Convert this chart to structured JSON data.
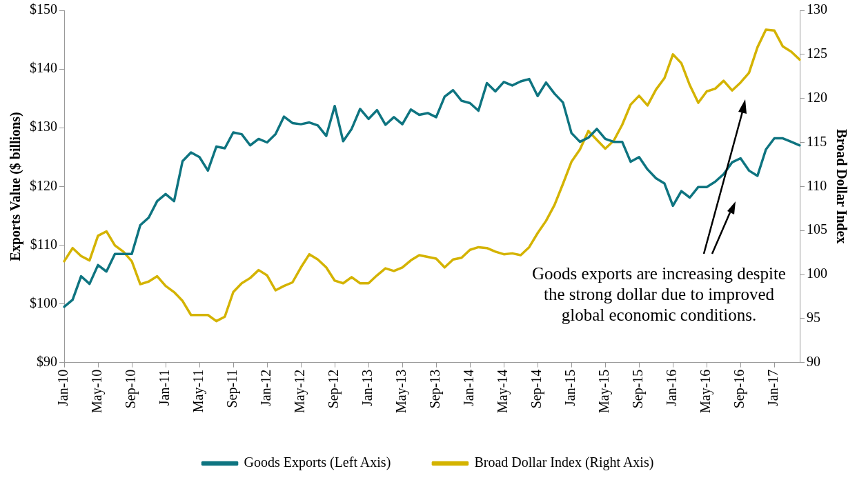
{
  "chart_data": {
    "type": "line",
    "categories": [
      "Jan-10",
      null,
      null,
      null,
      "May-10",
      null,
      null,
      null,
      "Sep-10",
      null,
      null,
      null,
      "Jan-11",
      null,
      null,
      null,
      "May-11",
      null,
      null,
      null,
      "Sep-11",
      null,
      null,
      null,
      "Jan-12",
      null,
      null,
      null,
      "May-12",
      null,
      null,
      null,
      "Sep-12",
      null,
      null,
      null,
      "Jan-13",
      null,
      null,
      null,
      "May-13",
      null,
      null,
      null,
      "Sep-13",
      null,
      null,
      null,
      "Jan-14",
      null,
      null,
      null,
      "May-14",
      null,
      null,
      null,
      "Sep-14",
      null,
      null,
      null,
      "Jan-15",
      null,
      null,
      null,
      "May-15",
      null,
      null,
      null,
      "Sep-15",
      null,
      null,
      null,
      "Jan-16",
      null,
      null,
      null,
      "May-16",
      null,
      null,
      null,
      "Sep-16",
      null,
      null,
      null,
      "Jan-17",
      null,
      null,
      null
    ],
    "series": [
      {
        "name": "Goods Exports (Left Axis)",
        "color": "#0e7480",
        "values": [
          99.5,
          100.7,
          104.7,
          103.4,
          106.6,
          105.5,
          108.5,
          108.5,
          108.5,
          113.4,
          114.7,
          117.5,
          118.7,
          117.5,
          124.3,
          125.8,
          125.0,
          122.7,
          126.8,
          126.5,
          129.2,
          128.9,
          127.0,
          128.1,
          127.5,
          128.9,
          131.9,
          130.8,
          130.6,
          130.9,
          130.4,
          128.6,
          133.7,
          127.7,
          129.8,
          133.2,
          131.5,
          133.0,
          130.5,
          131.8,
          130.6,
          133.1,
          132.2,
          132.5,
          131.8,
          135.3,
          136.4,
          134.6,
          134.2,
          132.9,
          137.6,
          136.2,
          137.8,
          137.2,
          137.9,
          138.3,
          135.4,
          137.7,
          135.8,
          134.3,
          129.1,
          127.6,
          128.3,
          129.8,
          128.1,
          127.6,
          127.6,
          124.2,
          125.0,
          122.9,
          121.4,
          120.5,
          116.7,
          119.2,
          118.1,
          119.9,
          119.9,
          120.8,
          122.1,
          124.1,
          124.8,
          122.7,
          121.8,
          126.3,
          128.2,
          128.2,
          127.6,
          127.0
        ]
      },
      {
        "name": "Broad Dollar Index (Right Axis)",
        "color": "#d4b300",
        "axis": "y2",
        "values": [
          101.5,
          103.0,
          102.1,
          101.6,
          104.4,
          104.9,
          103.3,
          102.6,
          101.5,
          98.9,
          99.2,
          99.8,
          98.7,
          98.0,
          97.0,
          95.4,
          95.4,
          95.4,
          94.7,
          95.2,
          98.0,
          99.0,
          99.6,
          100.5,
          99.9,
          98.2,
          98.7,
          99.1,
          100.8,
          102.3,
          101.7,
          100.8,
          99.3,
          99.0,
          99.7,
          99.0,
          99.0,
          99.9,
          100.7,
          100.4,
          100.8,
          101.6,
          102.2,
          102.0,
          101.8,
          100.8,
          101.7,
          101.9,
          102.8,
          103.1,
          103.0,
          102.6,
          102.3,
          102.4,
          102.2,
          103.1,
          104.7,
          106.1,
          107.9,
          110.3,
          112.8,
          114.2,
          116.3,
          115.3,
          114.3,
          115.2,
          117.0,
          119.3,
          120.3,
          119.2,
          121.0,
          122.3,
          125.0,
          124.0,
          121.5,
          119.5,
          120.8,
          121.1,
          122.0,
          120.9,
          121.8,
          122.9,
          125.8,
          127.8,
          127.7,
          125.9,
          125.3,
          124.4
        ]
      }
    ],
    "ylabel": "Exports Value ($ billions)",
    "y2label": "Broad Dollar Index",
    "ylim": [
      90,
      150
    ],
    "yticks": [
      {
        "value": 90,
        "label": "$90"
      },
      {
        "value": 100,
        "label": "$100"
      },
      {
        "value": 110,
        "label": "$110"
      },
      {
        "value": 120,
        "label": "$120"
      },
      {
        "value": 130,
        "label": "$130"
      },
      {
        "value": 140,
        "label": "$140"
      },
      {
        "value": 150,
        "label": "$150"
      }
    ],
    "y2lim": [
      90,
      130
    ],
    "y2ticks": [
      90,
      95,
      100,
      105,
      110,
      115,
      120,
      125,
      130
    ],
    "annotations": [
      "Goods exports are increasing despite the strong dollar due to improved global economic conditions."
    ],
    "legend": "bottom",
    "grid": false,
    "marker": "none",
    "line_style": "solid"
  }
}
